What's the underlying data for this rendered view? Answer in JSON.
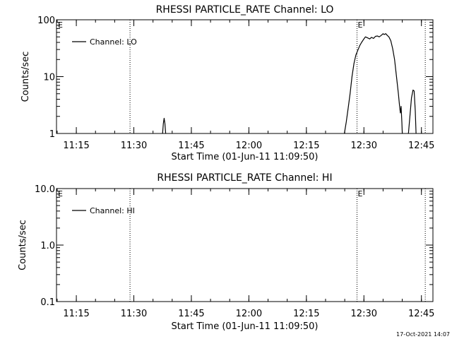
{
  "footer_timestamp": "17-Oct-2021 14:07",
  "chart_data": [
    {
      "type": "line",
      "title": "RHESSI PARTICLE_RATE Channel: LO",
      "xlabel": "Start Time (01-Jun-11 11:09:50)",
      "ylabel": "Counts/sec",
      "x_unit": "minutes since 11:00 UT",
      "xlim": [
        69.83,
        168.0
      ],
      "ylim": [
        1,
        100
      ],
      "yscale": "log",
      "x_ticks": [
        {
          "value": 75,
          "label": "11:15"
        },
        {
          "value": 90,
          "label": "11:30"
        },
        {
          "value": 105,
          "label": "11:45"
        },
        {
          "value": 120,
          "label": "12:00"
        },
        {
          "value": 135,
          "label": "12:15"
        },
        {
          "value": 150,
          "label": "12:30"
        },
        {
          "value": 165,
          "label": "12:45"
        }
      ],
      "y_ticks": [
        {
          "value": 1,
          "label": "1"
        },
        {
          "value": 10,
          "label": "10"
        },
        {
          "value": 100,
          "label": "100"
        }
      ],
      "y_minor_ticks": [
        2,
        3,
        4,
        5,
        6,
        7,
        8,
        9,
        20,
        30,
        40,
        50,
        60,
        70,
        80,
        90
      ],
      "x_minor_step": 5,
      "event_lines": [
        {
          "x": 89.0,
          "label": ""
        },
        {
          "x": 148.2,
          "label": "E"
        },
        {
          "x": 166.0,
          "label": ""
        }
      ],
      "edge_labels": [
        {
          "position": "top-left",
          "text": "E"
        }
      ],
      "legend": {
        "position": "top-left",
        "entries": [
          "Channel: LO"
        ]
      },
      "grid": false,
      "series": [
        {
          "name": "Channel: LO",
          "segments": [
            [
              [
                97.5,
                1
              ],
              [
                97.7,
                1.5
              ],
              [
                97.9,
                1.85
              ],
              [
                98.1,
                1.5
              ],
              [
                98.3,
                1
              ]
            ],
            [
              [
                144.9,
                1
              ],
              [
                145.4,
                1.6
              ],
              [
                145.9,
                2.8
              ],
              [
                146.4,
                5
              ],
              [
                146.9,
                10
              ],
              [
                147.4,
                17
              ],
              [
                147.9,
                24
              ],
              [
                148.4,
                29
              ],
              [
                148.9,
                35
              ],
              [
                149.4,
                40
              ],
              [
                149.9,
                45
              ],
              [
                150.4,
                50
              ],
              [
                151.0,
                48
              ],
              [
                151.5,
                46
              ],
              [
                152.0,
                49
              ],
              [
                152.5,
                47
              ],
              [
                153.0,
                51
              ],
              [
                153.5,
                52
              ],
              [
                154.0,
                50
              ],
              [
                154.5,
                53
              ],
              [
                155.0,
                57
              ],
              [
                155.3,
                55
              ],
              [
                155.7,
                57
              ],
              [
                156.1,
                53
              ],
              [
                156.5,
                50
              ],
              [
                157.0,
                43
              ],
              [
                157.5,
                31
              ],
              [
                158.0,
                20
              ],
              [
                158.5,
                10
              ],
              [
                159.0,
                5
              ],
              [
                159.3,
                3
              ],
              [
                159.5,
                2.3
              ],
              [
                159.7,
                3
              ],
              [
                159.9,
                1.6
              ],
              [
                160.0,
                1
              ]
            ],
            [
              [
                161.6,
                1
              ],
              [
                162.0,
                2.0
              ],
              [
                162.4,
                4.2
              ],
              [
                162.8,
                5.8
              ],
              [
                163.1,
                5.6
              ],
              [
                163.4,
                2.5
              ],
              [
                163.6,
                1
              ]
            ]
          ]
        }
      ]
    },
    {
      "type": "line",
      "title": "RHESSI PARTICLE_RATE Channel: HI",
      "xlabel": "Start Time (01-Jun-11 11:09:50)",
      "ylabel": "Counts/sec",
      "x_unit": "minutes since 11:00 UT",
      "xlim": [
        69.83,
        168.0
      ],
      "ylim": [
        0.1,
        10.0
      ],
      "yscale": "log",
      "x_ticks": [
        {
          "value": 75,
          "label": "11:15"
        },
        {
          "value": 90,
          "label": "11:30"
        },
        {
          "value": 105,
          "label": "11:45"
        },
        {
          "value": 120,
          "label": "12:00"
        },
        {
          "value": 135,
          "label": "12:15"
        },
        {
          "value": 150,
          "label": "12:30"
        },
        {
          "value": 165,
          "label": "12:45"
        }
      ],
      "y_ticks": [
        {
          "value": 0.1,
          "label": "0.1"
        },
        {
          "value": 1.0,
          "label": "1.0"
        },
        {
          "value": 10.0,
          "label": "10.0"
        }
      ],
      "y_minor_ticks": [
        0.2,
        0.3,
        0.4,
        0.5,
        0.6,
        0.7,
        0.8,
        0.9,
        2,
        3,
        4,
        5,
        6,
        7,
        8,
        9
      ],
      "x_minor_step": 5,
      "event_lines": [
        {
          "x": 89.0,
          "label": ""
        },
        {
          "x": 148.2,
          "label": "E"
        },
        {
          "x": 166.0,
          "label": ""
        }
      ],
      "edge_labels": [
        {
          "position": "top-left",
          "text": "E"
        }
      ],
      "legend": {
        "position": "top-left",
        "entries": [
          "Channel: HI"
        ]
      },
      "grid": false,
      "series": [
        {
          "name": "Channel: HI",
          "segments": []
        }
      ]
    }
  ]
}
